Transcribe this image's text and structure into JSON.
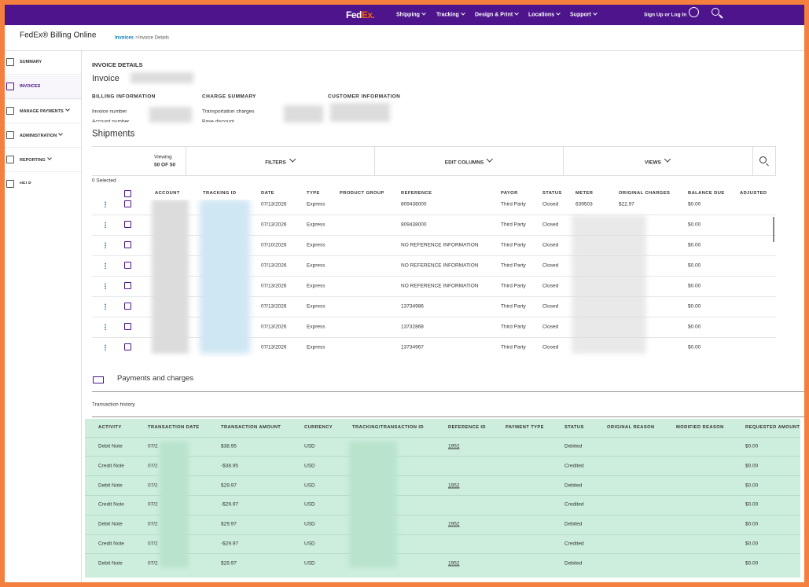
{
  "nav": {
    "logo_fed": "Fed",
    "logo_ex": "Ex.",
    "items": [
      "Shipping",
      "Tracking",
      "Design & Print",
      "Locations",
      "Support"
    ],
    "signin": "Sign Up or Log In"
  },
  "app": {
    "title": "FedEx® Billing Online",
    "breadcrumb": {
      "link": "Invoices",
      "separator": ">",
      "current": "Invoice Details"
    }
  },
  "sidebar": {
    "items": [
      "SUMMARY",
      "INVOICES",
      "MANAGE PAYMENTS",
      "ADMINISTRATION",
      "REPORTING",
      "HELP"
    ]
  },
  "invoice": {
    "heading": "INVOICE DETAILS",
    "title": "Invoice",
    "billing": {
      "heading": "BILLING INFORMATION",
      "labels": [
        "Invoice number",
        "Account number"
      ]
    },
    "charges": {
      "heading": "CHARGE SUMMARY",
      "labels": [
        "Transportation charges",
        "Base discount"
      ]
    },
    "customer": {
      "heading": "CUSTOMER INFORMATION"
    }
  },
  "shipments": {
    "title": "Shipments",
    "viewing": "Viewing",
    "count": "50 OF 50",
    "toolbar": [
      "FILTERS",
      "EDIT COLUMNS",
      "VIEWS"
    ],
    "selected": "0 Selected",
    "columns": [
      "ACCOUNT",
      "TRACKING ID",
      "DATE",
      "TYPE",
      "PRODUCT GROUP",
      "REFERENCE",
      "PAYOR",
      "STATUS",
      "METER",
      "ORIGINAL CHARGES",
      "BALANCE DUE",
      "ADJUSTED"
    ],
    "rows": [
      {
        "date": "07/13/2026",
        "type": "Express",
        "reference": "809438000",
        "payor": "Third Party",
        "status": "Closed",
        "meter": "639503",
        "original_charges": "$22.97",
        "balance_due": "$0.00"
      },
      {
        "date": "07/13/2026",
        "type": "Express",
        "reference": "809438000",
        "payor": "Third Party",
        "status": "Closed",
        "balance_due": "$0.00"
      },
      {
        "date": "07/10/2026",
        "type": "Express",
        "reference": "NO REFERENCE INFORMATION",
        "payor": "Third Party",
        "status": "Closed",
        "balance_due": "$0.00"
      },
      {
        "date": "07/13/2026",
        "type": "Express",
        "reference": "NO REFERENCE INFORMATION",
        "payor": "Third Party",
        "status": "Closed",
        "balance_due": "$0.00"
      },
      {
        "date": "07/13/2026",
        "type": "Express",
        "reference": "NO REFERENCE INFORMATION",
        "payor": "Third Party",
        "status": "Closed",
        "balance_due": "$0.00"
      },
      {
        "date": "07/13/2026",
        "type": "Express",
        "reference": "13734986",
        "payor": "Third Party",
        "status": "Closed",
        "balance_due": "$0.00"
      },
      {
        "date": "07/13/2026",
        "type": "Express",
        "reference": "13732868",
        "payor": "Third Party",
        "status": "Closed",
        "balance_due": "$0.00"
      },
      {
        "date": "07/13/2026",
        "type": "Express",
        "reference": "13734967",
        "payor": "Third Party",
        "status": "Closed",
        "balance_due": "$0.00"
      }
    ]
  },
  "payments": {
    "title": "Payments and charges",
    "subtitle": "Transaction history",
    "columns": [
      "ACTIVITY",
      "TRANSACTION DATE",
      "TRANSACTION AMOUNT",
      "CURRENCY",
      "TRACKING/TRANSACTION ID",
      "REFERENCE ID",
      "PAYMENT TYPE",
      "STATUS",
      "ORIGINAL REASON",
      "MODIFIED REASON",
      "REQUESTED AMOUNT"
    ],
    "rows": [
      {
        "activity": "Debit Note",
        "date": "07/2",
        "amount": "$38.95",
        "currency": "USD",
        "reference_id": "1952",
        "status": "Debited",
        "requested_amount": "$0.00"
      },
      {
        "activity": "Credit Note",
        "date": "07/2",
        "amount": "-$38.95",
        "currency": "USD",
        "status": "Credited",
        "requested_amount": "$0.00"
      },
      {
        "activity": "Debit Note",
        "date": "07/2",
        "amount": "$29.97",
        "currency": "USD",
        "reference_id": "1952",
        "status": "Debited",
        "requested_amount": "$0.00"
      },
      {
        "activity": "Credit Note",
        "date": "07/2",
        "amount": "-$29.97",
        "currency": "USD",
        "status": "Credited",
        "requested_amount": "$0.00"
      },
      {
        "activity": "Debit Note",
        "date": "07/2",
        "amount": "$29.97",
        "currency": "USD",
        "reference_id": "1952",
        "status": "Debited",
        "requested_amount": "$0.00"
      },
      {
        "activity": "Credit Note",
        "date": "07/2",
        "amount": "-$29.97",
        "currency": "USD",
        "status": "Credited",
        "requested_amount": "$0.00"
      },
      {
        "activity": "Debit Note",
        "date": "07/2",
        "amount": "$29.97",
        "currency": "USD",
        "reference_id": "1952",
        "status": "Debited",
        "requested_amount": "$0.00"
      }
    ]
  }
}
